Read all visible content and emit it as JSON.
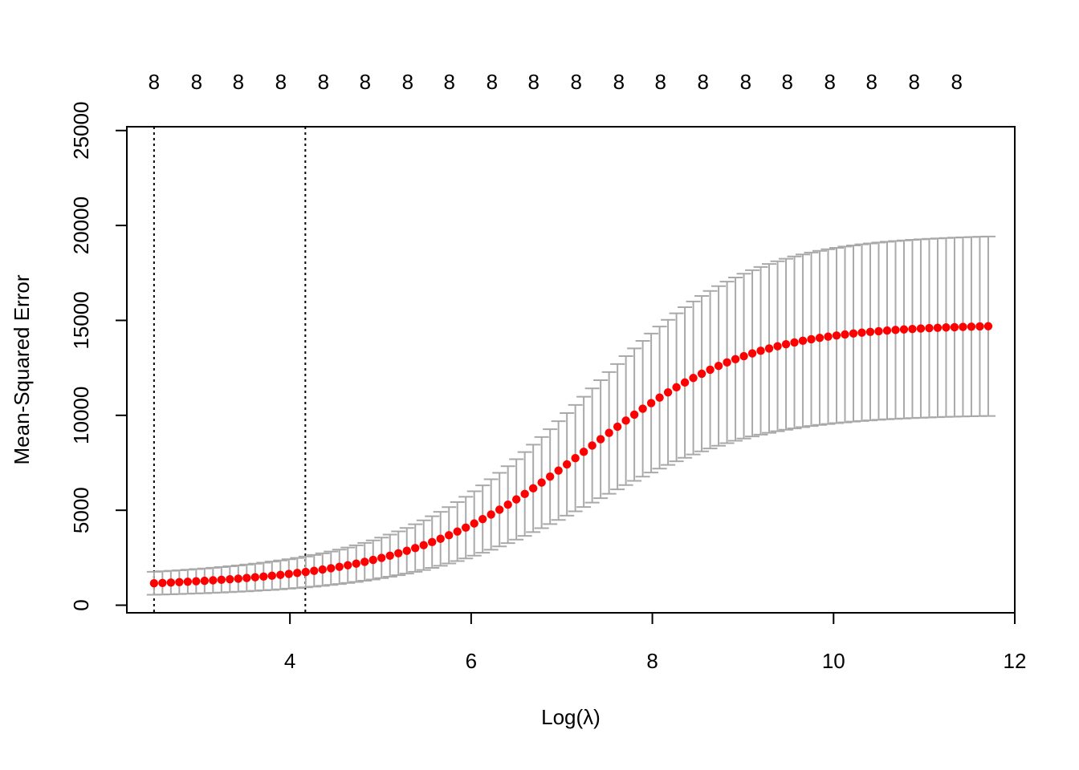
{
  "chart_data": {
    "type": "scatter",
    "title": "",
    "xlabel": "Log(λ)",
    "ylabel": "Mean-Squared Error",
    "xlim": [
      2.2,
      12.0
    ],
    "ylim": [
      -400,
      25200
    ],
    "x_ticks": [
      4,
      6,
      8,
      10,
      12
    ],
    "y_ticks": [
      0,
      5000,
      10000,
      15000,
      20000,
      25000
    ],
    "x_tick_labels": [
      "4",
      "6",
      "8",
      "10",
      "12"
    ],
    "y_tick_labels": [
      "0",
      "5000",
      "10000",
      "15000",
      "20000",
      "25000"
    ],
    "top_axis": {
      "positions": [
        2.5,
        2.97,
        3.43,
        3.9,
        4.37,
        4.83,
        5.3,
        5.76,
        6.23,
        6.69,
        7.16,
        7.63,
        8.09,
        8.56,
        9.03,
        9.49,
        9.96,
        10.42,
        10.89,
        11.36
      ],
      "labels": [
        "8",
        "8",
        "8",
        "8",
        "8",
        "8",
        "8",
        "8",
        "8",
        "8",
        "8",
        "8",
        "8",
        "8",
        "8",
        "8",
        "8",
        "8",
        "8",
        "8"
      ]
    },
    "vlines": [
      2.5,
      4.17
    ],
    "grid": false,
    "legend": "none",
    "colors": {
      "points": "#ff0000",
      "error_bars": "#a9a9a9",
      "vlines": "#000000"
    },
    "series": [
      {
        "x": [
          2.5,
          2.593,
          2.686,
          2.779,
          2.872,
          2.965,
          3.058,
          3.151,
          3.244,
          3.337,
          3.43,
          3.523,
          3.616,
          3.709,
          3.802,
          3.895,
          3.988,
          4.081,
          4.174,
          4.267,
          4.36,
          4.453,
          4.546,
          4.639,
          4.732,
          4.825,
          4.918,
          5.011,
          5.104,
          5.197,
          5.29,
          5.383,
          5.476,
          5.569,
          5.662,
          5.755,
          5.848,
          5.941,
          6.034,
          6.127,
          6.22,
          6.313,
          6.406,
          6.499,
          6.592,
          6.685,
          6.778,
          6.871,
          6.964,
          7.057,
          7.15,
          7.243,
          7.336,
          7.429,
          7.522,
          7.615,
          7.708,
          7.801,
          7.894,
          7.987,
          8.08,
          8.173,
          8.266,
          8.359,
          8.452,
          8.545,
          8.638,
          8.731,
          8.824,
          8.917,
          9.01,
          9.103,
          9.196,
          9.289,
          9.382,
          9.475,
          9.568,
          9.661,
          9.754,
          9.847,
          9.94,
          10.033,
          10.126,
          10.219,
          10.312,
          10.405,
          10.498,
          10.591,
          10.684,
          10.777,
          10.87,
          10.963,
          11.056,
          11.149,
          11.242,
          11.335,
          11.428,
          11.521,
          11.614,
          11.707
        ],
        "y": [
          1154,
          1173,
          1193,
          1214,
          1236,
          1260,
          1284,
          1311,
          1339,
          1368,
          1400,
          1434,
          1471,
          1510,
          1551,
          1596,
          1645,
          1697,
          1752,
          1812,
          1877,
          1947,
          2022,
          2103,
          2190,
          2284,
          2385,
          2493,
          2609,
          2734,
          2867,
          3010,
          3162,
          3325,
          3499,
          3683,
          3879,
          4086,
          4305,
          4536,
          4778,
          5032,
          5297,
          5572,
          5859,
          6155,
          6459,
          6772,
          7091,
          7416,
          7745,
          8077,
          8410,
          8743,
          9074,
          9401,
          9723,
          10039,
          10347,
          10646,
          10934,
          11211,
          11476,
          11729,
          11967,
          12192,
          12404,
          12602,
          12786,
          12958,
          13117,
          13264,
          13399,
          13524,
          13638,
          13743,
          13839,
          13927,
          14006,
          14079,
          14145,
          14205,
          14259,
          14309,
          14354,
          14395,
          14432,
          14465,
          14496,
          14523,
          14548,
          14571,
          14592,
          14611,
          14628,
          14643,
          14657,
          14670,
          14682,
          14692
        ],
        "upper": [
          1760,
          1785,
          1812,
          1840,
          1870,
          1902,
          1936,
          1971,
          2009,
          2049,
          2092,
          2138,
          2187,
          2239,
          2296,
          2356,
          2420,
          2490,
          2565,
          2645,
          2732,
          2826,
          2926,
          3035,
          3152,
          3279,
          3415,
          3561,
          3718,
          3887,
          4068,
          4261,
          4467,
          4686,
          4920,
          5168,
          5431,
          5709,
          6002,
          6310,
          6633,
          6970,
          7322,
          7688,
          8067,
          8458,
          8859,
          9271,
          9691,
          10117,
          10548,
          10982,
          11417,
          11850,
          12279,
          12703,
          13120,
          13527,
          13923,
          14307,
          14677,
          15032,
          15371,
          15693,
          15998,
          16284,
          16553,
          16805,
          17039,
          17256,
          17457,
          17642,
          17813,
          17970,
          18114,
          18245,
          18365,
          18474,
          18573,
          18664,
          18746,
          18820,
          18888,
          18949,
          19004,
          19055,
          19100,
          19141,
          19179,
          19212,
          19243,
          19271,
          19296,
          19319,
          19340,
          19358,
          19375,
          19391,
          19405,
          19417
        ],
        "lower": [
          548,
          561,
          574,
          588,
          602,
          618,
          632,
          651,
          669,
          687,
          708,
          730,
          755,
          781,
          806,
          836,
          870,
          904,
          939,
          979,
          1022,
          1068,
          1118,
          1171,
          1228,
          1289,
          1355,
          1425,
          1500,
          1581,
          1666,
          1759,
          1857,
          1964,
          2078,
          2198,
          2327,
          2463,
          2608,
          2762,
          2923,
          3094,
          3272,
          3456,
          3651,
          3852,
          4059,
          4273,
          4491,
          4715,
          4942,
          5172,
          5403,
          5636,
          5869,
          6099,
          6326,
          6551,
          6771,
          6985,
          7191,
          7390,
          7581,
          7765,
          7936,
          8100,
          8255,
          8399,
          8533,
          8660,
          8777,
          8886,
          8985,
          9078,
          9162,
          9241,
          9313,
          9380,
          9439,
          9494,
          9544,
          9590,
          9630,
          9669,
          9704,
          9735,
          9764,
          9789,
          9813,
          9834,
          9853,
          9871,
          9888,
          9903,
          9916,
          9928,
          9939,
          9949,
          9959,
          9967
        ]
      }
    ]
  }
}
